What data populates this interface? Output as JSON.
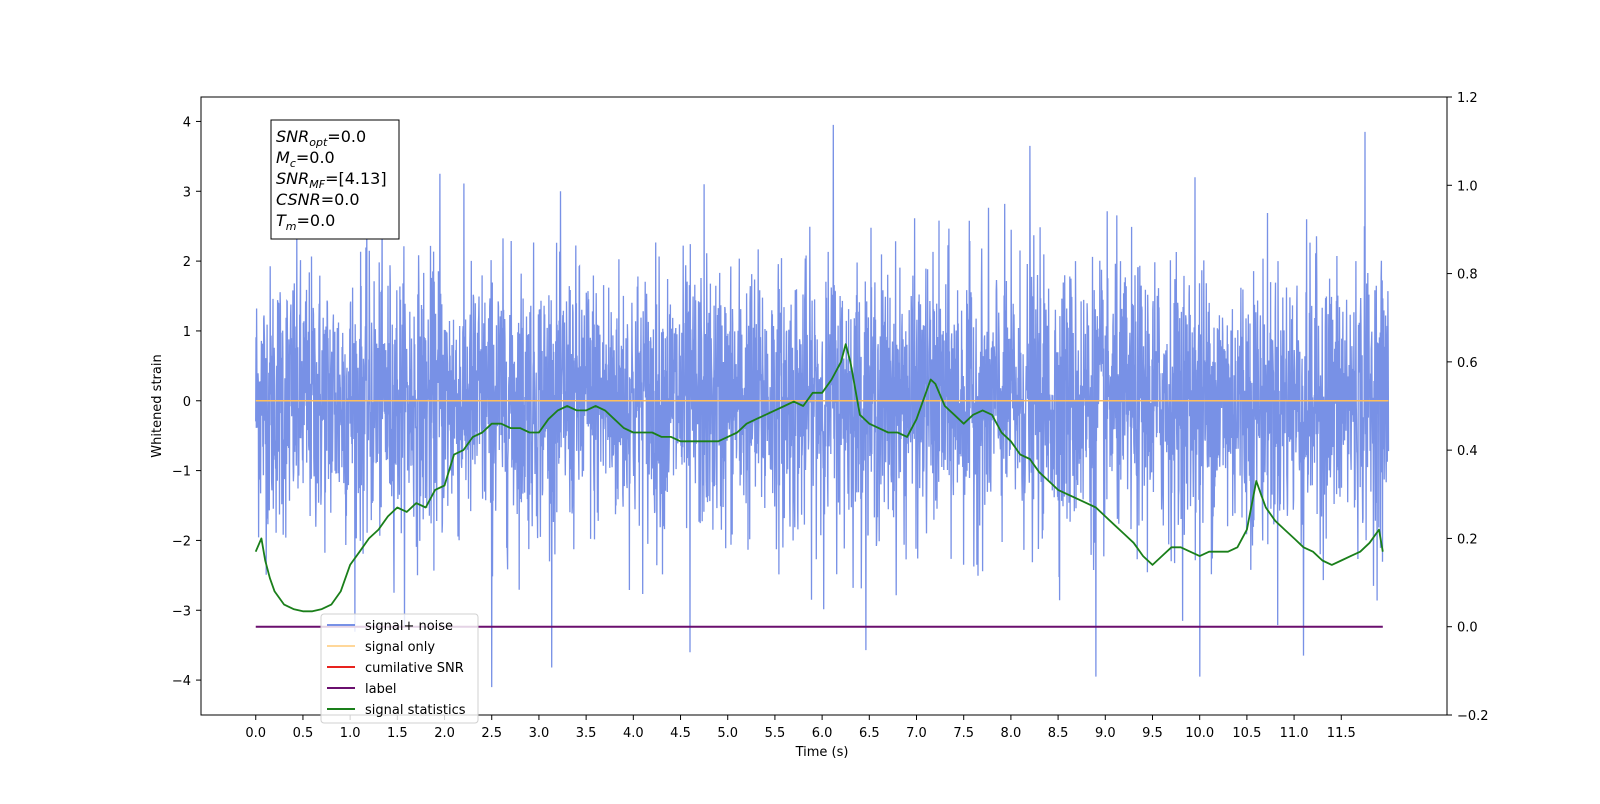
{
  "chart_data": {
    "type": "line",
    "xlabel": "Time (s)",
    "ylabel": "Whitened strain",
    "xlim": [
      -0.58,
      12.62
    ],
    "ylim": [
      -4.5,
      4.35
    ],
    "y2lim": [
      -0.2,
      1.2
    ],
    "x_ticks": [
      "0.0",
      "0.5",
      "1.0",
      "1.5",
      "2.0",
      "2.5",
      "3.0",
      "3.5",
      "4.0",
      "4.5",
      "5.0",
      "5.5",
      "6.0",
      "6.5",
      "7.0",
      "7.5",
      "8.0",
      "8.5",
      "9.0",
      "9.5",
      "10.0",
      "10.5",
      "11.0",
      "11.5"
    ],
    "y_ticks": [
      "4",
      "3",
      "2",
      "1",
      "0",
      "−1",
      "−2",
      "−3",
      "−4"
    ],
    "y2_ticks": [
      "1.2",
      "1.0",
      "0.8",
      "0.6",
      "0.4",
      "0.2",
      "0.0",
      "−0.2"
    ],
    "grid": false,
    "legend_position": "lower-left",
    "annotation": {
      "lines": [
        {
          "base": "SNR",
          "sub": "opt",
          "value": "=0.0"
        },
        {
          "base": "M",
          "sub": "c",
          "value": "=0.0"
        },
        {
          "base": "SNR",
          "sub": "MF",
          "value": "=[4.13]"
        },
        {
          "base": "CSNR",
          "sub": "",
          "value": "=0.0"
        },
        {
          "base": "T",
          "sub": "m",
          "value": "=0.0"
        }
      ]
    },
    "series": [
      {
        "name": "signal+ noise",
        "color": "#7891e6",
        "axis": "left",
        "style": "noise",
        "x_range": [
          0.0,
          12.0
        ],
        "std": 0.95,
        "envelope": {
          "max_peak": 3.95,
          "min_trough": -4.1
        },
        "notable_spikes": [
          {
            "x": 6.12,
            "y": 3.95
          },
          {
            "x": 11.75,
            "y": 3.85
          },
          {
            "x": 1.95,
            "y": 3.25
          },
          {
            "x": 4.75,
            "y": 3.1
          },
          {
            "x": 9.95,
            "y": 3.2
          },
          {
            "x": 8.2,
            "y": 3.65
          },
          {
            "x": 2.5,
            "y": -4.1
          },
          {
            "x": 4.6,
            "y": -3.6
          },
          {
            "x": 10.0,
            "y": -3.95
          },
          {
            "x": 8.9,
            "y": -3.95
          },
          {
            "x": 11.1,
            "y": -3.65
          }
        ]
      },
      {
        "name": "signal only",
        "color": "#ffbf5c",
        "axis": "left",
        "x": [
          0.0,
          12.0
        ],
        "y": [
          0.0,
          0.0
        ]
      },
      {
        "name": "cumilative SNR",
        "color": "#e8231e",
        "axis": "right",
        "x": [],
        "y": []
      },
      {
        "name": "label",
        "color": "#6a0f6e",
        "axis": "right",
        "x": [
          0.0,
          11.94
        ],
        "y": [
          0.0,
          0.0
        ]
      },
      {
        "name": "signal statistics",
        "color": "#1a7f1a",
        "axis": "right",
        "x": [
          0.0,
          0.06,
          0.1,
          0.15,
          0.2,
          0.3,
          0.4,
          0.5,
          0.6,
          0.7,
          0.8,
          0.9,
          1.0,
          1.1,
          1.2,
          1.3,
          1.4,
          1.5,
          1.6,
          1.7,
          1.8,
          1.9,
          2.0,
          2.1,
          2.2,
          2.3,
          2.4,
          2.5,
          2.6,
          2.7,
          2.8,
          2.9,
          3.0,
          3.1,
          3.2,
          3.3,
          3.4,
          3.5,
          3.6,
          3.7,
          3.8,
          3.9,
          4.0,
          4.1,
          4.2,
          4.3,
          4.4,
          4.5,
          4.6,
          4.7,
          4.8,
          4.9,
          5.0,
          5.1,
          5.2,
          5.3,
          5.4,
          5.5,
          5.6,
          5.7,
          5.8,
          5.9,
          6.0,
          6.1,
          6.2,
          6.25,
          6.3,
          6.4,
          6.5,
          6.6,
          6.7,
          6.8,
          6.9,
          7.0,
          7.1,
          7.15,
          7.2,
          7.3,
          7.4,
          7.5,
          7.6,
          7.7,
          7.8,
          7.9,
          8.0,
          8.1,
          8.2,
          8.3,
          8.4,
          8.5,
          8.6,
          8.7,
          8.8,
          8.9,
          9.0,
          9.1,
          9.2,
          9.3,
          9.4,
          9.5,
          9.6,
          9.7,
          9.8,
          9.9,
          10.0,
          10.1,
          10.2,
          10.3,
          10.4,
          10.5,
          10.6,
          10.65,
          10.7,
          10.8,
          10.9,
          11.0,
          11.1,
          11.2,
          11.3,
          11.4,
          11.5,
          11.6,
          11.7,
          11.8,
          11.9,
          11.94
        ],
        "y": [
          0.17,
          0.2,
          0.15,
          0.11,
          0.08,
          0.05,
          0.04,
          0.035,
          0.035,
          0.04,
          0.05,
          0.08,
          0.14,
          0.17,
          0.2,
          0.22,
          0.25,
          0.27,
          0.26,
          0.28,
          0.27,
          0.31,
          0.32,
          0.39,
          0.4,
          0.43,
          0.44,
          0.46,
          0.46,
          0.45,
          0.45,
          0.44,
          0.44,
          0.47,
          0.49,
          0.5,
          0.49,
          0.49,
          0.5,
          0.49,
          0.47,
          0.45,
          0.44,
          0.44,
          0.44,
          0.43,
          0.43,
          0.42,
          0.42,
          0.42,
          0.42,
          0.42,
          0.43,
          0.44,
          0.46,
          0.47,
          0.48,
          0.49,
          0.5,
          0.51,
          0.5,
          0.53,
          0.53,
          0.56,
          0.6,
          0.64,
          0.6,
          0.48,
          0.46,
          0.45,
          0.44,
          0.44,
          0.43,
          0.47,
          0.53,
          0.56,
          0.55,
          0.5,
          0.48,
          0.46,
          0.48,
          0.49,
          0.48,
          0.44,
          0.42,
          0.39,
          0.38,
          0.35,
          0.33,
          0.31,
          0.3,
          0.29,
          0.28,
          0.27,
          0.25,
          0.23,
          0.21,
          0.19,
          0.16,
          0.14,
          0.16,
          0.18,
          0.18,
          0.17,
          0.16,
          0.17,
          0.17,
          0.17,
          0.18,
          0.22,
          0.33,
          0.3,
          0.27,
          0.24,
          0.22,
          0.2,
          0.18,
          0.17,
          0.15,
          0.14,
          0.15,
          0.16,
          0.17,
          0.19,
          0.22,
          0.17
        ]
      }
    ]
  }
}
